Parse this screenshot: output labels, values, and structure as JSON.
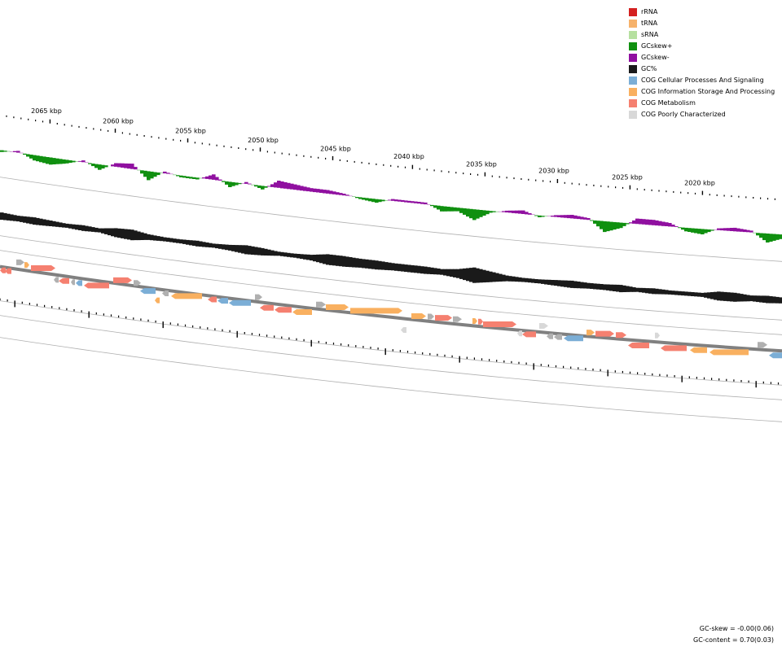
{
  "legend": [
    {
      "label": "rRNA",
      "color": "#d42020"
    },
    {
      "label": "tRNA",
      "color": "#f6b26b"
    },
    {
      "label": "sRNA",
      "color": "#b6e0a0"
    },
    {
      "label": "GCskew+",
      "color": "#109010"
    },
    {
      "label": "GCskew-",
      "color": "#9010a0"
    },
    {
      "label": "GC%",
      "color": "#1a1a1a"
    },
    {
      "label": "COG Cellular Processes And Signaling",
      "color": "#7baed6"
    },
    {
      "label": "COG Information Storage And Processing",
      "color": "#f9b060"
    },
    {
      "label": "COG Metabolism",
      "color": "#f58070"
    },
    {
      "label": "COG Poorly Characterized",
      "color": "#d8d8d8"
    }
  ],
  "ruler": {
    "labels": [
      "2065 kbp",
      "2060 kbp",
      "2055 kbp",
      "2050 kbp",
      "2045 kbp",
      "2040 kbp",
      "2035 kbp",
      "2030 kbp",
      "2025 kbp",
      "2020 kbp"
    ]
  },
  "stats": {
    "gc_skew": "GC-skew = -0.00(0.06)",
    "gc_content": "GC-content = 0.70(0.03)"
  },
  "colors": {
    "skew_pos": "#109010",
    "skew_neg": "#9010a0",
    "gc": "#1a1a1a",
    "backbone": "#808080",
    "track_line": "#b0b0b0",
    "cog_cell": "#7baed6",
    "cog_info": "#f9b060",
    "cog_metab": "#f58070",
    "cog_poor": "#d8d8d8",
    "unknown": "#b0b0b0"
  }
}
